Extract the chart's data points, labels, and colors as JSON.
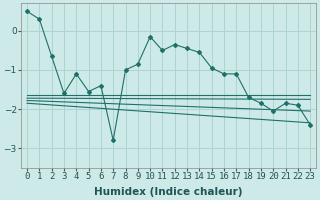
{
  "xlabel": "Humidex (Indice chaleur)",
  "background_color": "#ceeae8",
  "grid_color": "#aed4d2",
  "line_color": "#1e7068",
  "xlim": [
    -0.5,
    23.5
  ],
  "ylim": [
    -3.5,
    0.7
  ],
  "yticks": [
    -3,
    -2,
    -1,
    0
  ],
  "xticks": [
    0,
    1,
    2,
    3,
    4,
    5,
    6,
    7,
    8,
    9,
    10,
    11,
    12,
    13,
    14,
    15,
    16,
    17,
    18,
    19,
    20,
    21,
    22,
    23
  ],
  "series1_x": [
    0,
    1,
    2,
    3,
    4,
    5,
    6,
    7,
    8,
    9,
    10,
    11,
    12,
    13,
    14,
    15,
    16,
    17,
    18,
    19,
    20,
    21,
    22,
    23
  ],
  "series1_y": [
    0.5,
    0.3,
    -0.65,
    -1.6,
    -1.1,
    -1.55,
    -1.4,
    -2.8,
    -1.0,
    -0.85,
    -0.15,
    -0.5,
    -0.35,
    -0.45,
    -0.55,
    -0.95,
    -1.1,
    -1.1,
    -1.7,
    -1.85,
    -2.05,
    -1.85,
    -1.9,
    -2.4
  ],
  "series2_x": [
    0,
    23
  ],
  "series2_y": [
    -1.65,
    -1.65
  ],
  "series3_x": [
    0,
    23
  ],
  "series3_y": [
    -1.72,
    -1.75
  ],
  "series4_x": [
    0,
    23
  ],
  "series4_y": [
    -1.78,
    -2.05
  ],
  "series5_x": [
    0,
    23
  ],
  "series5_y": [
    -1.85,
    -2.35
  ],
  "tick_font_size": 6.5,
  "label_font_size": 7.5
}
